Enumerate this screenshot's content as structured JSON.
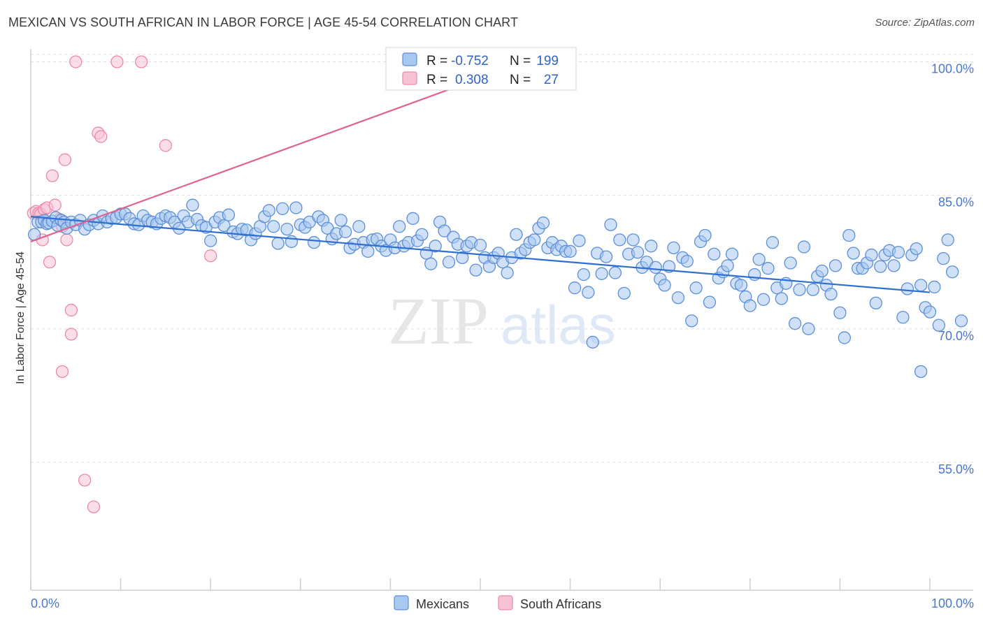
{
  "header": {
    "title": "MEXICAN VS SOUTH AFRICAN IN LABOR FORCE | AGE 45-54 CORRELATION CHART",
    "source": "Source: ZipAtlas.com"
  },
  "colors": {
    "blue_fill": "#a9c8f0",
    "blue_stroke": "#5b8fd6",
    "blue_line": "#2f6fd0",
    "pink_fill": "#f7c3d3",
    "pink_stroke": "#e98aaa",
    "pink_line": "#e0628d",
    "grid": "#dddddd",
    "axis_label": "#4a78c8"
  },
  "chart_data": {
    "type": "scatter",
    "title": "MEXICAN VS SOUTH AFRICAN IN LABOR FORCE | AGE 45-54 CORRELATION CHART",
    "xlabel": "",
    "ylabel": "In Labor Force | Age 45-54",
    "xlim": [
      0,
      100
    ],
    "ylim": [
      40,
      101.5
    ],
    "x_tick_labels": [
      "0.0%",
      "100.0%"
    ],
    "y_ticks": [
      100,
      85,
      70,
      55
    ],
    "y_tick_labels": [
      "100.0%",
      "85.0%",
      "70.0%",
      "55.0%"
    ],
    "grid": true,
    "watermark": "ZIPatlas",
    "legend_box": {
      "rows": [
        {
          "r_label": "R =",
          "r_value": "-0.752",
          "n_label": "N =",
          "n_value": "199"
        },
        {
          "r_label": "R =",
          "r_value": "0.308",
          "n_label": "N =",
          "n_value": "27"
        }
      ]
    },
    "legend_bottom": [
      "Mexicans",
      "South Africans"
    ],
    "series": [
      {
        "name": "Mexicans",
        "color": "blue",
        "trend": {
          "x": [
            0,
            100
          ],
          "y": [
            82.6,
            74.1
          ]
        },
        "points": [
          [
            0.4,
            80.6
          ],
          [
            0.8,
            82.0
          ],
          [
            1.2,
            82.0
          ],
          [
            1.5,
            82.2
          ],
          [
            1.8,
            81.8
          ],
          [
            2.0,
            81.9
          ],
          [
            2.4,
            82.1
          ],
          [
            2.8,
            82.5
          ],
          [
            3.0,
            81.6
          ],
          [
            3.4,
            82.2
          ],
          [
            3.7,
            82.0
          ],
          [
            4.0,
            81.3
          ],
          [
            4.5,
            82.0
          ],
          [
            5.0,
            81.7
          ],
          [
            5.5,
            82.2
          ],
          [
            6.0,
            81.2
          ],
          [
            6.5,
            81.7
          ],
          [
            7.0,
            82.2
          ],
          [
            7.5,
            81.8
          ],
          [
            8.0,
            82.7
          ],
          [
            8.5,
            82.0
          ],
          [
            9.0,
            82.4
          ],
          [
            9.5,
            82.5
          ],
          [
            10.0,
            82.9
          ],
          [
            10.5,
            82.9
          ],
          [
            11.0,
            82.4
          ],
          [
            11.5,
            81.8
          ],
          [
            12.0,
            81.7
          ],
          [
            12.5,
            82.7
          ],
          [
            13.0,
            82.2
          ],
          [
            13.5,
            82.0
          ],
          [
            14.0,
            81.8
          ],
          [
            14.5,
            82.4
          ],
          [
            15.0,
            82.7
          ],
          [
            15.5,
            82.5
          ],
          [
            16.0,
            82.0
          ],
          [
            16.5,
            81.3
          ],
          [
            17.0,
            82.7
          ],
          [
            17.5,
            82.0
          ],
          [
            18.0,
            83.9
          ],
          [
            18.5,
            82.3
          ],
          [
            19.0,
            81.6
          ],
          [
            19.5,
            81.4
          ],
          [
            20.0,
            79.9
          ],
          [
            20.5,
            82.0
          ],
          [
            21.0,
            82.5
          ],
          [
            21.5,
            81.6
          ],
          [
            22.0,
            82.8
          ],
          [
            22.5,
            80.9
          ],
          [
            23.0,
            80.7
          ],
          [
            23.5,
            81.2
          ],
          [
            24.0,
            81.1
          ],
          [
            24.5,
            80.0
          ],
          [
            25.0,
            80.7
          ],
          [
            25.5,
            81.5
          ],
          [
            26.0,
            82.6
          ],
          [
            26.5,
            83.3
          ],
          [
            27.0,
            81.5
          ],
          [
            27.5,
            79.6
          ],
          [
            28.0,
            83.5
          ],
          [
            28.5,
            81.2
          ],
          [
            29.0,
            79.8
          ],
          [
            29.5,
            83.6
          ],
          [
            30.0,
            81.7
          ],
          [
            30.5,
            81.4
          ],
          [
            31.0,
            82.0
          ],
          [
            31.5,
            79.7
          ],
          [
            32.0,
            82.6
          ],
          [
            32.5,
            82.2
          ],
          [
            33.0,
            81.3
          ],
          [
            33.5,
            80.1
          ],
          [
            34.0,
            80.7
          ],
          [
            34.5,
            82.2
          ],
          [
            35.0,
            80.9
          ],
          [
            35.5,
            79.1
          ],
          [
            36.0,
            79.5
          ],
          [
            36.5,
            81.5
          ],
          [
            37.0,
            79.7
          ],
          [
            37.5,
            78.7
          ],
          [
            38.0,
            80.0
          ],
          [
            38.5,
            80.1
          ],
          [
            39.0,
            79.3
          ],
          [
            39.5,
            78.8
          ],
          [
            40.0,
            80.0
          ],
          [
            40.5,
            79.1
          ],
          [
            41.0,
            81.5
          ],
          [
            41.5,
            79.3
          ],
          [
            42.0,
            79.7
          ],
          [
            42.5,
            82.4
          ],
          [
            43.0,
            79.9
          ],
          [
            43.5,
            80.6
          ],
          [
            44.0,
            78.5
          ],
          [
            44.5,
            77.3
          ],
          [
            45.0,
            79.3
          ],
          [
            45.5,
            82.0
          ],
          [
            46.0,
            81.0
          ],
          [
            46.5,
            77.5
          ],
          [
            47.0,
            80.3
          ],
          [
            47.5,
            79.5
          ],
          [
            48.0,
            78.0
          ],
          [
            48.5,
            79.3
          ],
          [
            49.0,
            79.7
          ],
          [
            49.5,
            76.6
          ],
          [
            50.0,
            79.4
          ],
          [
            50.5,
            78.0
          ],
          [
            51.0,
            77.0
          ],
          [
            51.5,
            78.0
          ],
          [
            52.0,
            78.5
          ],
          [
            52.5,
            77.5
          ],
          [
            53.0,
            76.3
          ],
          [
            53.5,
            78.0
          ],
          [
            54.0,
            80.6
          ],
          [
            54.5,
            78.5
          ],
          [
            55.0,
            78.9
          ],
          [
            55.5,
            79.7
          ],
          [
            56.0,
            80.0
          ],
          [
            56.5,
            81.3
          ],
          [
            57.0,
            81.9
          ],
          [
            57.5,
            79.1
          ],
          [
            58.0,
            79.7
          ],
          [
            58.5,
            78.9
          ],
          [
            59.0,
            79.3
          ],
          [
            59.5,
            78.7
          ],
          [
            60.0,
            78.7
          ],
          [
            60.5,
            74.6
          ],
          [
            61.0,
            79.9
          ],
          [
            61.5,
            76.1
          ],
          [
            62.0,
            74.1
          ],
          [
            62.5,
            68.5
          ],
          [
            63.0,
            78.5
          ],
          [
            63.5,
            76.2
          ],
          [
            64.0,
            78.1
          ],
          [
            64.5,
            81.7
          ],
          [
            65.0,
            76.3
          ],
          [
            65.5,
            80.0
          ],
          [
            66.0,
            74.0
          ],
          [
            66.5,
            78.4
          ],
          [
            67.0,
            80.0
          ],
          [
            67.5,
            78.6
          ],
          [
            68.0,
            76.9
          ],
          [
            68.5,
            77.5
          ],
          [
            69.0,
            79.3
          ],
          [
            69.5,
            76.9
          ],
          [
            70.0,
            75.6
          ],
          [
            70.5,
            74.9
          ],
          [
            71.0,
            77.0
          ],
          [
            71.5,
            79.1
          ],
          [
            72.0,
            73.5
          ],
          [
            72.5,
            78.0
          ],
          [
            73.0,
            77.6
          ],
          [
            73.5,
            70.9
          ],
          [
            74.0,
            74.6
          ],
          [
            74.5,
            79.8
          ],
          [
            75.0,
            80.5
          ],
          [
            75.5,
            73.0
          ],
          [
            76.0,
            78.4
          ],
          [
            76.5,
            75.7
          ],
          [
            77.0,
            76.4
          ],
          [
            77.5,
            77.1
          ],
          [
            78.0,
            78.4
          ],
          [
            78.5,
            75.1
          ],
          [
            79.0,
            74.9
          ],
          [
            79.5,
            73.6
          ],
          [
            80.0,
            72.6
          ],
          [
            80.5,
            76.1
          ],
          [
            81.0,
            77.8
          ],
          [
            81.5,
            73.3
          ],
          [
            82.0,
            76.8
          ],
          [
            82.5,
            79.7
          ],
          [
            83.0,
            74.6
          ],
          [
            83.5,
            73.4
          ],
          [
            84.0,
            75.1
          ],
          [
            84.5,
            77.4
          ],
          [
            85.0,
            70.6
          ],
          [
            85.5,
            74.4
          ],
          [
            86.0,
            79.2
          ],
          [
            86.5,
            70.0
          ],
          [
            87.0,
            74.4
          ],
          [
            87.5,
            75.9
          ],
          [
            88.0,
            76.5
          ],
          [
            88.5,
            74.9
          ],
          [
            89.0,
            73.9
          ],
          [
            89.5,
            77.1
          ],
          [
            90.0,
            71.8
          ],
          [
            90.5,
            69.0
          ],
          [
            91.0,
            80.5
          ],
          [
            91.5,
            78.5
          ],
          [
            92.0,
            76.8
          ],
          [
            92.5,
            76.8
          ],
          [
            93.0,
            77.4
          ],
          [
            93.5,
            78.3
          ],
          [
            94.0,
            72.9
          ],
          [
            94.5,
            77.0
          ],
          [
            95.0,
            78.3
          ],
          [
            95.5,
            78.8
          ],
          [
            96.0,
            77.1
          ],
          [
            96.5,
            78.6
          ],
          [
            97.0,
            71.3
          ],
          [
            97.5,
            74.5
          ],
          [
            98.0,
            78.3
          ],
          [
            98.5,
            79.0
          ],
          [
            99.0,
            74.9
          ],
          [
            99.5,
            72.4
          ],
          [
            99.0,
            65.2
          ],
          [
            100.0,
            71.9
          ],
          [
            100.5,
            74.7
          ],
          [
            101.0,
            70.4
          ],
          [
            101.5,
            77.9
          ],
          [
            102.0,
            80.0
          ],
          [
            102.5,
            76.4
          ],
          [
            103.5,
            70.9
          ]
        ]
      },
      {
        "name": "South Africans",
        "color": "pink",
        "trend": {
          "x": [
            0,
            55
          ],
          "y": [
            79.8,
            100
          ]
        },
        "points": [
          [
            0.3,
            83.0
          ],
          [
            0.6,
            83.2
          ],
          [
            0.9,
            83.0
          ],
          [
            1.1,
            82.9
          ],
          [
            1.3,
            80.0
          ],
          [
            1.5,
            83.4
          ],
          [
            1.8,
            83.6
          ],
          [
            2.1,
            77.5
          ],
          [
            2.4,
            87.2
          ],
          [
            2.7,
            83.9
          ],
          [
            3.2,
            82.3
          ],
          [
            3.5,
            81.5
          ],
          [
            3.5,
            65.2
          ],
          [
            3.8,
            89.0
          ],
          [
            4.0,
            80.0
          ],
          [
            4.5,
            72.1
          ],
          [
            4.5,
            69.4
          ],
          [
            5.0,
            100.0
          ],
          [
            6.0,
            53.0
          ],
          [
            7.0,
            50.0
          ],
          [
            7.5,
            92.0
          ],
          [
            7.8,
            91.6
          ],
          [
            9.6,
            100.0
          ],
          [
            12.3,
            100.0
          ],
          [
            15.0,
            90.6
          ],
          [
            20.0,
            78.2
          ],
          [
            55.0,
            100.0
          ]
        ]
      }
    ]
  }
}
